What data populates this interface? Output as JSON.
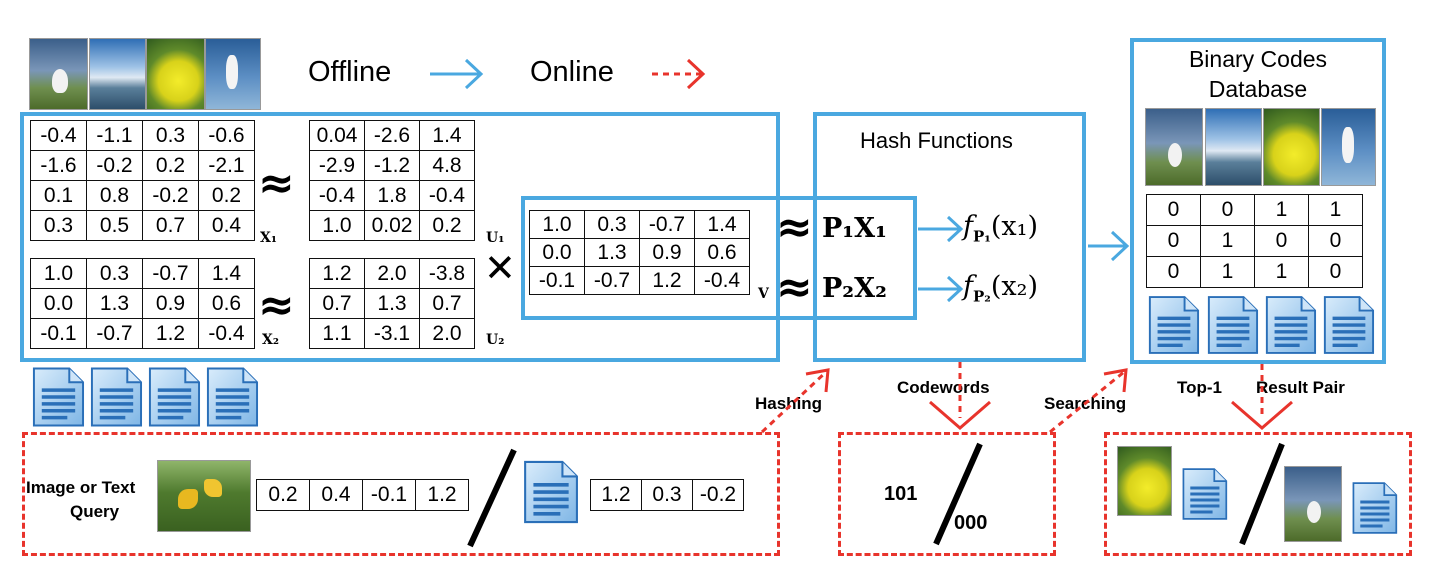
{
  "legend": {
    "offline_label": "Offline",
    "online_label": "Online",
    "offline_color": "#4aa8e0",
    "online_color": "#e8342c"
  },
  "matrices": {
    "X1": [
      [
        "-0.4",
        "-1.1",
        "0.3",
        "-0.6"
      ],
      [
        "-1.6",
        "-0.2",
        "0.2",
        "-2.1"
      ],
      [
        "0.1",
        "0.8",
        "-0.2",
        "0.2"
      ],
      [
        "0.3",
        "0.5",
        "0.7",
        "0.4"
      ]
    ],
    "U1": [
      [
        "0.04",
        "-2.6",
        "1.4"
      ],
      [
        "-2.9",
        "-1.2",
        "4.8"
      ],
      [
        "-0.4",
        "1.8",
        "-0.4"
      ],
      [
        "1.0",
        "0.02",
        "0.2"
      ]
    ],
    "X2": [
      [
        "1.0",
        "0.3",
        "-0.7",
        "1.4"
      ],
      [
        "0.0",
        "1.3",
        "0.9",
        "0.6"
      ],
      [
        "-0.1",
        "-0.7",
        "1.2",
        "-0.4"
      ]
    ],
    "U2": [
      [
        "1.2",
        "2.0",
        "-3.8"
      ],
      [
        "0.7",
        "1.3",
        "0.7"
      ],
      [
        "1.1",
        "-3.1",
        "2.0"
      ]
    ],
    "V": [
      [
        "1.0",
        "0.3",
        "-0.7",
        "1.4"
      ],
      [
        "0.0",
        "1.3",
        "0.9",
        "0.6"
      ],
      [
        "-0.1",
        "-0.7",
        "1.2",
        "-0.4"
      ]
    ]
  },
  "symbols": {
    "x1": "X₁",
    "x2": "X₂",
    "u1": "U₁",
    "u2": "U₂",
    "v": "V",
    "approx": "≈",
    "times": "✕"
  },
  "hash": {
    "title": "Hash Functions",
    "p1x1": "P₁X₁",
    "p2x2": "P₂X₂",
    "f1": "f",
    "f1_sub": "P₁",
    "f1_arg": "(x₁)",
    "f2": "f",
    "f2_sub": "P₂",
    "f2_arg": "(x₂)"
  },
  "database": {
    "title_line1": "Binary Codes",
    "title_line2": "Database",
    "codes": [
      [
        "0",
        "0",
        "1",
        "1"
      ],
      [
        "0",
        "1",
        "0",
        "0"
      ],
      [
        "0",
        "1",
        "1",
        "0"
      ]
    ]
  },
  "online": {
    "hashing_label": "Hashing",
    "codewords_label": "Codewords",
    "searching_label": "Searching",
    "top1_label": "Top-1",
    "result_pair_label": "Result Pair",
    "query_label_line1": "Image or Text",
    "query_label_line2": "Query",
    "image_query_vector": [
      "0.2",
      "0.4",
      "-0.1",
      "1.2"
    ],
    "text_query_vector": [
      "1.2",
      "0.3",
      "-0.2"
    ],
    "code_image": "101",
    "code_text": "000"
  },
  "icons": {
    "document": "document-icon",
    "photo_swan": "swan-photo",
    "photo_sky": "sky-lake-photo",
    "photo_flower": "yellow-flower-photo",
    "photo_egret": "egret-photo",
    "photo_query": "yellow-lily-photo"
  }
}
